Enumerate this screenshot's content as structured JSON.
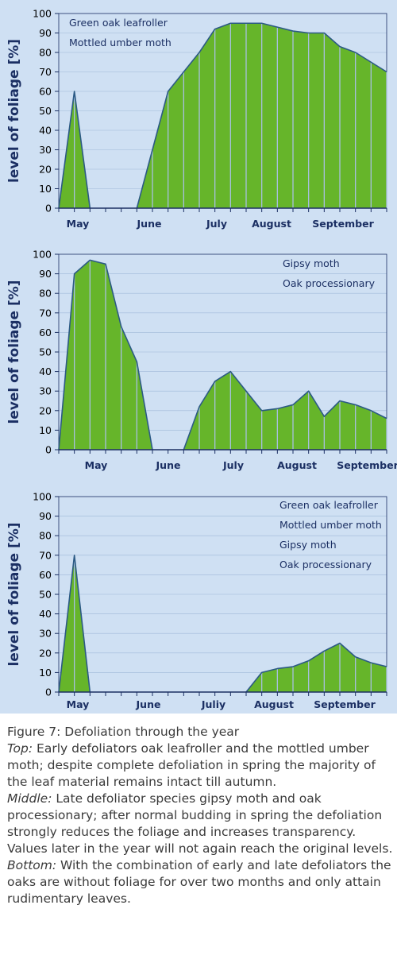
{
  "chart_data": [
    {
      "type": "area",
      "ylabel": "level of foliage [%]",
      "ylim": [
        0,
        100
      ],
      "yticks": [
        "0",
        "10",
        "20",
        "30",
        "40",
        "50",
        "60",
        "70",
        "80",
        "90",
        "100"
      ],
      "months": [
        "May",
        "June",
        "July",
        "August",
        "September"
      ],
      "legend": [
        "Green oak leafroller",
        "Mottled umber moth"
      ],
      "legend_position": "top-left",
      "segments": [
        [
          [
            0,
            0
          ],
          [
            1,
            60
          ],
          [
            2,
            0
          ]
        ],
        [
          [
            5,
            0
          ],
          [
            6,
            30
          ],
          [
            7,
            60
          ],
          [
            8,
            70
          ],
          [
            9,
            80
          ],
          [
            10,
            92
          ],
          [
            11,
            95
          ],
          [
            12,
            95
          ],
          [
            13,
            95
          ],
          [
            14,
            93
          ],
          [
            15,
            91
          ],
          [
            16,
            90
          ],
          [
            17,
            90
          ],
          [
            18,
            83
          ],
          [
            19,
            80
          ],
          [
            20,
            75
          ],
          [
            21,
            70
          ]
        ]
      ],
      "color": "#66b52a"
    },
    {
      "type": "area",
      "ylabel": "level of foliage [%]",
      "ylim": [
        0,
        100
      ],
      "yticks": [
        "0",
        "10",
        "20",
        "30",
        "40",
        "50",
        "60",
        "70",
        "80",
        "90",
        "100"
      ],
      "months": [
        "May",
        "June",
        "July",
        "August",
        "September"
      ],
      "legend": [
        "Gipsy moth",
        "Oak processionary"
      ],
      "legend_position": "top-right",
      "segments": [
        [
          [
            0,
            0
          ],
          [
            1,
            90
          ],
          [
            2,
            97
          ],
          [
            3,
            95
          ],
          [
            4,
            63
          ],
          [
            5,
            45
          ],
          [
            6,
            0
          ]
        ],
        [
          [
            8,
            0
          ],
          [
            9,
            22
          ],
          [
            10,
            35
          ],
          [
            11,
            40
          ],
          [
            12,
            30
          ],
          [
            13,
            20
          ],
          [
            14,
            21
          ],
          [
            15,
            23
          ],
          [
            16,
            30
          ],
          [
            17,
            17
          ],
          [
            18,
            25
          ],
          [
            19,
            23
          ],
          [
            20,
            20
          ],
          [
            21,
            16
          ]
        ]
      ],
      "color": "#66b52a"
    },
    {
      "type": "area",
      "ylabel": "level of foliage [%]",
      "ylim": [
        0,
        100
      ],
      "yticks": [
        "0",
        "10",
        "20",
        "30",
        "40",
        "50",
        "60",
        "70",
        "80",
        "90",
        "100"
      ],
      "months": [
        "May",
        "June",
        "Juliy",
        "August",
        "September"
      ],
      "legend": [
        "Green oak leafroller",
        "Mottled umber moth",
        "Gipsy moth",
        "Oak processionary"
      ],
      "legend_position": "top-right",
      "segments": [
        [
          [
            0,
            0
          ],
          [
            1,
            70
          ],
          [
            2,
            0
          ]
        ],
        [
          [
            12,
            0
          ],
          [
            13,
            10
          ],
          [
            14,
            12
          ],
          [
            15,
            13
          ],
          [
            16,
            16
          ],
          [
            17,
            21
          ],
          [
            18,
            25
          ],
          [
            19,
            18
          ],
          [
            20,
            15
          ],
          [
            21,
            13
          ]
        ]
      ],
      "color": "#66b52a"
    }
  ],
  "caption": {
    "title": "Figure 7: Defoliation through the year",
    "top_label": "Top:",
    "top_text": " Early defoliators oak leafroller and the mottled umber moth; despite complete defoliation in spring the majority of the leaf material remains intact till autumn.",
    "middle_label": "Middle:",
    "middle_text": " Late defoliator species gipsy moth and oak processionary; after normal budding in spring the defoliation strongly reduces the foliage and increases transparency. Values later in the year will not again reach the original levels.",
    "bottom_label": "Bottom:",
    "bottom_text": " With the combination of early and late defoliators the oaks are without foliage for over two months and only attain rudimentary leaves."
  }
}
